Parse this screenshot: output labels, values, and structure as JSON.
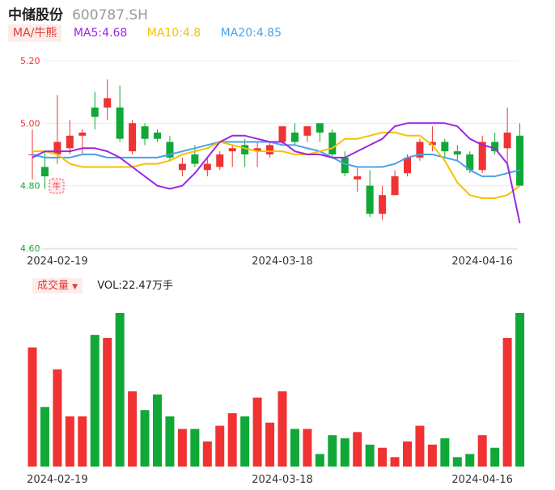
{
  "header": {
    "name": "中储股份",
    "code": "600787.SH"
  },
  "legend": {
    "ma_label": "MA/牛熊",
    "ma5": {
      "text": "MA5:4.68",
      "color": "#9c27e0"
    },
    "ma10": {
      "text": "MA10:4.8",
      "color": "#f5c000"
    },
    "ma20": {
      "text": "MA20:4.85",
      "color": "#4aa3e8"
    }
  },
  "volume_legend": {
    "label": "成交量",
    "value": "VOL:22.47万手"
  },
  "colors": {
    "up": "#f03232",
    "down": "#10a836"
  },
  "badge": {
    "text": "牛"
  },
  "chart_data": [
    {
      "type": "candlestick",
      "y_ticks": [
        "5.20",
        "5.00",
        "4.80",
        "4.60"
      ],
      "ylim": [
        4.6,
        5.2
      ],
      "x_labels": [
        "2024-02-19",
        "2024-03-18",
        "2024-04-16"
      ],
      "candles": [
        {
          "open": 4.9,
          "close": 4.9,
          "high": 4.98,
          "low": 4.82
        },
        {
          "open": 4.86,
          "close": 4.83,
          "high": 4.91,
          "low": 4.79
        },
        {
          "open": 4.9,
          "close": 4.94,
          "high": 5.09,
          "low": 4.87
        },
        {
          "open": 4.92,
          "close": 4.96,
          "high": 5.01,
          "low": 4.9
        },
        {
          "open": 4.96,
          "close": 4.97,
          "high": 4.98,
          "low": 4.9
        },
        {
          "open": 5.05,
          "close": 5.02,
          "high": 5.1,
          "low": 4.98
        },
        {
          "open": 5.05,
          "close": 5.08,
          "high": 5.14,
          "low": 5.01
        },
        {
          "open": 5.05,
          "close": 4.95,
          "high": 5.12,
          "low": 4.94
        },
        {
          "open": 4.91,
          "close": 5.0,
          "high": 5.01,
          "low": 4.9
        },
        {
          "open": 4.99,
          "close": 4.95,
          "high": 5.0,
          "low": 4.93
        },
        {
          "open": 4.97,
          "close": 4.95,
          "high": 4.98,
          "low": 4.94
        },
        {
          "open": 4.94,
          "close": 4.89,
          "high": 4.96,
          "low": 4.88
        },
        {
          "open": 4.85,
          "close": 4.87,
          "high": 4.89,
          "low": 4.83
        },
        {
          "open": 4.9,
          "close": 4.87,
          "high": 4.93,
          "low": 4.86
        },
        {
          "open": 4.85,
          "close": 4.87,
          "high": 4.89,
          "low": 4.83
        },
        {
          "open": 4.86,
          "close": 4.9,
          "high": 4.91,
          "low": 4.85
        },
        {
          "open": 4.91,
          "close": 4.92,
          "high": 4.93,
          "low": 4.86
        },
        {
          "open": 4.93,
          "close": 4.9,
          "high": 4.95,
          "low": 4.86
        },
        {
          "open": 4.91,
          "close": 4.92,
          "high": 4.94,
          "low": 4.86
        },
        {
          "open": 4.9,
          "close": 4.93,
          "high": 4.94,
          "low": 4.89
        },
        {
          "open": 4.94,
          "close": 4.99,
          "high": 4.99,
          "low": 4.93
        },
        {
          "open": 4.97,
          "close": 4.94,
          "high": 5.0,
          "low": 4.93
        },
        {
          "open": 4.96,
          "close": 4.99,
          "high": 4.99,
          "low": 4.94
        },
        {
          "open": 5.0,
          "close": 4.97,
          "high": 5.0,
          "low": 4.94
        },
        {
          "open": 4.97,
          "close": 4.9,
          "high": 4.98,
          "low": 4.89
        },
        {
          "open": 4.89,
          "close": 4.84,
          "high": 4.91,
          "low": 4.83
        },
        {
          "open": 4.82,
          "close": 4.83,
          "high": 4.86,
          "low": 4.78
        },
        {
          "open": 4.8,
          "close": 4.71,
          "high": 4.85,
          "low": 4.7
        },
        {
          "open": 4.71,
          "close": 4.77,
          "high": 4.8,
          "low": 4.69
        },
        {
          "open": 4.77,
          "close": 4.83,
          "high": 4.85,
          "low": 4.77
        },
        {
          "open": 4.84,
          "close": 4.89,
          "high": 4.9,
          "low": 4.83
        },
        {
          "open": 4.89,
          "close": 4.94,
          "high": 4.95,
          "low": 4.88
        },
        {
          "open": 4.93,
          "close": 4.94,
          "high": 4.99,
          "low": 4.91
        },
        {
          "open": 4.94,
          "close": 4.91,
          "high": 4.95,
          "low": 4.89
        },
        {
          "open": 4.91,
          "close": 4.9,
          "high": 4.93,
          "low": 4.88
        },
        {
          "open": 4.9,
          "close": 4.85,
          "high": 4.91,
          "low": 4.84
        },
        {
          "open": 4.85,
          "close": 4.94,
          "high": 4.96,
          "low": 4.84
        },
        {
          "open": 4.94,
          "close": 4.91,
          "high": 4.97,
          "low": 4.9
        },
        {
          "open": 4.92,
          "close": 4.97,
          "high": 5.05,
          "low": 4.87
        },
        {
          "open": 4.96,
          "close": 4.8,
          "high": 5.0,
          "low": 4.8
        }
      ],
      "ma5": [
        4.89,
        4.91,
        4.91,
        4.91,
        4.92,
        4.92,
        4.91,
        4.89,
        4.86,
        4.83,
        4.8,
        4.79,
        4.8,
        4.84,
        4.89,
        4.94,
        4.96,
        4.96,
        4.95,
        4.94,
        4.94,
        4.91,
        4.9,
        4.9,
        4.89,
        4.89,
        4.91,
        4.93,
        4.95,
        4.99,
        5.0,
        5.0,
        5.0,
        5.0,
        4.99,
        4.95,
        4.93,
        4.92,
        4.87,
        4.68
      ],
      "ma10": [
        4.91,
        4.91,
        4.9,
        4.87,
        4.86,
        4.86,
        4.86,
        4.86,
        4.86,
        4.87,
        4.87,
        4.88,
        4.9,
        4.91,
        4.92,
        4.94,
        4.93,
        4.92,
        4.91,
        4.91,
        4.91,
        4.9,
        4.9,
        4.91,
        4.92,
        4.95,
        4.95,
        4.96,
        4.97,
        4.97,
        4.96,
        4.96,
        4.93,
        4.88,
        4.81,
        4.77,
        4.76,
        4.76,
        4.77,
        4.8
      ],
      "ma20": [
        4.9,
        4.89,
        4.89,
        4.89,
        4.9,
        4.9,
        4.89,
        4.89,
        4.89,
        4.89,
        4.89,
        4.9,
        4.91,
        4.92,
        4.93,
        4.94,
        4.94,
        4.94,
        4.94,
        4.94,
        4.93,
        4.93,
        4.92,
        4.91,
        4.89,
        4.87,
        4.86,
        4.86,
        4.86,
        4.87,
        4.89,
        4.9,
        4.9,
        4.89,
        4.88,
        4.85,
        4.83,
        4.83,
        4.84,
        4.85
      ]
    },
    {
      "type": "bar",
      "volumes": [
        38,
        19,
        31,
        16,
        16,
        42,
        41,
        49,
        24,
        18,
        23,
        16,
        12,
        12,
        8,
        13,
        17,
        16,
        22,
        14,
        24,
        12,
        12,
        4,
        10,
        9,
        11,
        7,
        6,
        3,
        8,
        13,
        7,
        9,
        3,
        4,
        10,
        6,
        41,
        49
      ]
    }
  ]
}
